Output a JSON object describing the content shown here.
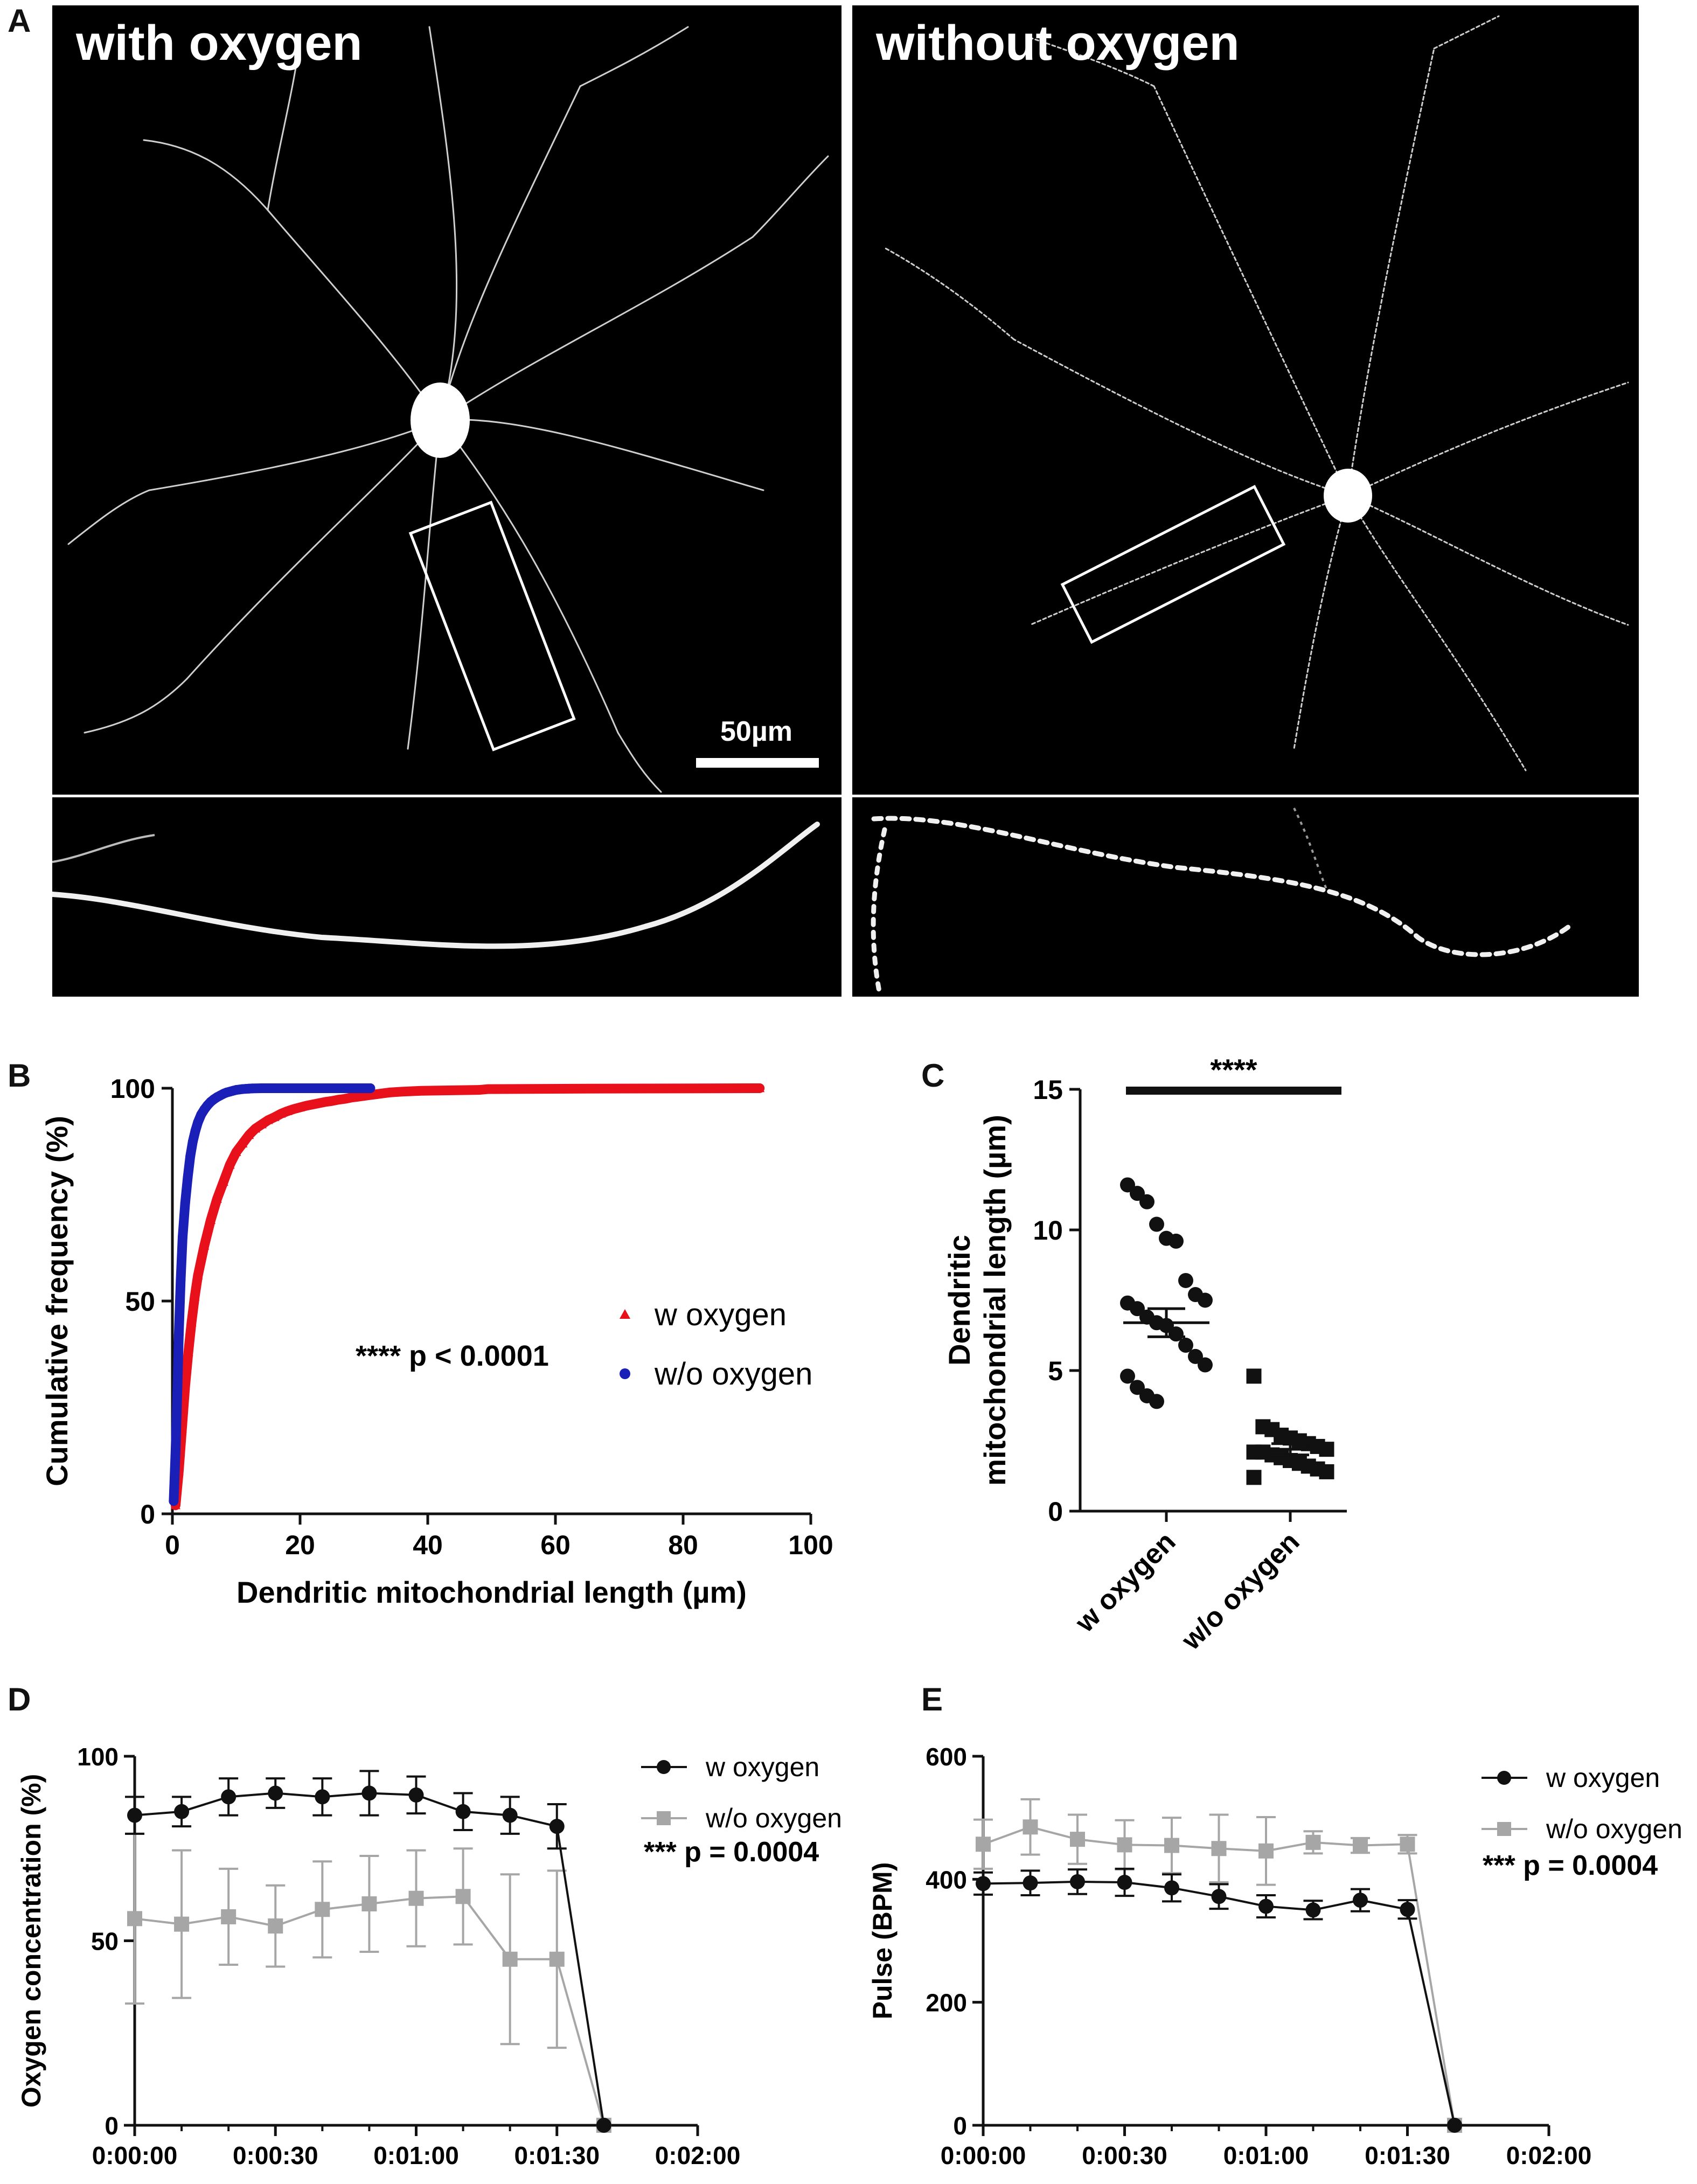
{
  "panels": {
    "A": {
      "letter": "A",
      "left_title": "with oxygen",
      "right_title": "without oxygen",
      "scale_bar_label": "50µm"
    },
    "B": {
      "letter": "B"
    },
    "C": {
      "letter": "C"
    },
    "D": {
      "letter": "D"
    },
    "E": {
      "letter": "E"
    }
  },
  "colors": {
    "red": "#e8101a",
    "blue": "#1a1fb8",
    "black": "#111111",
    "gray": "#a6a6a6"
  },
  "chart_data": [
    {
      "id": "B",
      "type": "scatter",
      "xlabel": "Dendritic mitochondrial length (µm)",
      "ylabel": "Cumulative frequency (%)",
      "xlim": [
        0,
        100
      ],
      "ylim": [
        0,
        100
      ],
      "xticks": [
        "0",
        "20",
        "40",
        "60",
        "80",
        "100"
      ],
      "yticks": [
        "0",
        "50",
        "100"
      ],
      "annotation": "**** p < 0.0001",
      "legend_position": "center-right",
      "series": [
        {
          "name": "w oxygen",
          "marker": "triangle",
          "color": "#e8101a",
          "x": [
            0.5,
            1,
            1.5,
            2,
            2.5,
            3,
            3.5,
            4,
            5,
            6,
            7,
            8,
            9,
            10,
            11,
            12,
            13,
            14,
            15,
            16,
            17,
            18,
            19,
            20,
            21,
            22,
            23,
            24,
            25,
            26,
            27,
            28,
            29,
            30,
            31,
            32,
            33,
            34,
            36,
            39,
            48,
            49.5,
            65,
            92
          ],
          "y": [
            2,
            10,
            20,
            30,
            38,
            45,
            51,
            56,
            63,
            69,
            74,
            78,
            82,
            85,
            87,
            89,
            90.5,
            91.5,
            92.5,
            93.2,
            94,
            94.6,
            95.1,
            95.5,
            95.9,
            96.2,
            96.5,
            96.8,
            97,
            97.3,
            97.5,
            97.8,
            98,
            98.2,
            98.4,
            98.6,
            98.8,
            99,
            99.2,
            99.4,
            99.6,
            99.8,
            99.9,
            100
          ]
        },
        {
          "name": "w/o oxygen",
          "marker": "circle",
          "color": "#1a1fb8",
          "x": [
            0.2,
            0.5,
            0.8,
            1,
            1.3,
            1.6,
            2,
            2.4,
            2.8,
            3.2,
            3.6,
            4,
            4.5,
            5,
            5.5,
            6,
            6.5,
            7,
            7.5,
            8,
            8.5,
            9,
            9.5,
            10,
            10.5,
            11,
            11.5,
            12,
            12.5,
            14,
            15,
            16,
            31
          ],
          "y": [
            3,
            15,
            30,
            42,
            55,
            65,
            73,
            79,
            84,
            87.5,
            90,
            92,
            93.8,
            95,
            96,
            96.8,
            97.4,
            97.9,
            98.3,
            98.7,
            99,
            99.2,
            99.4,
            99.6,
            99.7,
            99.8,
            99.85,
            99.9,
            99.95,
            100,
            100,
            100,
            100
          ]
        }
      ]
    },
    {
      "id": "C",
      "type": "scatter",
      "ylabel": "Dendritic mitochondrial length (µm)",
      "categories": [
        "w oxygen",
        "w/o oxygen"
      ],
      "ylim": [
        0,
        15
      ],
      "yticks": [
        "0",
        "5",
        "10",
        "15"
      ],
      "significance": "****",
      "series": [
        {
          "name": "w oxygen",
          "marker": "circle",
          "color": "#111111",
          "mean": 6.7,
          "sem": 0.5,
          "values": [
            11.6,
            11.3,
            11.0,
            10.2,
            9.7,
            9.6,
            8.2,
            7.7,
            7.5,
            7.4,
            7.2,
            6.9,
            6.7,
            6.6,
            6.3,
            5.9,
            5.5,
            5.2,
            4.8,
            4.4,
            4.1,
            3.9
          ]
        },
        {
          "name": "w/o oxygen",
          "marker": "square",
          "color": "#111111",
          "mean": 2.2,
          "sem": 0.2,
          "values": [
            4.8,
            3.0,
            2.9,
            2.7,
            2.6,
            2.5,
            2.4,
            2.3,
            2.2,
            2.1,
            2.1,
            2.0,
            1.9,
            1.8,
            1.7,
            1.6,
            1.5,
            1.4,
            1.2
          ]
        }
      ]
    },
    {
      "id": "D",
      "type": "line",
      "ylabel": "Oxygen concentration (%)",
      "x": [
        "0:00:00",
        "0:00:10",
        "0:00:20",
        "0:00:30",
        "0:00:40",
        "0:00:50",
        "0:01:00",
        "0:01:10",
        "0:01:20",
        "0:01:30",
        "0:01:40"
      ],
      "xticks": [
        "0:00:00",
        "0:00:30",
        "0:01:00",
        "0:01:30",
        "0:02:00"
      ],
      "xlim": [
        "0:00:00",
        "0:02:00"
      ],
      "ylim": [
        0,
        100
      ],
      "yticks": [
        "0",
        "50",
        "100"
      ],
      "annotation": "*** p = 0.0004",
      "legend_position": "top-right",
      "series": [
        {
          "name": "w oxygen",
          "marker": "circle",
          "color": "#111111",
          "values": [
            84,
            85,
            89,
            90,
            89,
            90,
            89.5,
            85,
            84,
            81,
            0
          ],
          "err": [
            5,
            4,
            5,
            4,
            5,
            6,
            5,
            5,
            5,
            6,
            0
          ]
        },
        {
          "name": "w/o oxygen",
          "marker": "square",
          "color": "#a6a6a6",
          "values": [
            56,
            54.5,
            56.5,
            54,
            58.5,
            60,
            61.5,
            62,
            45,
            45,
            0
          ],
          "err": [
            23,
            20,
            13,
            11,
            13,
            13,
            13,
            13,
            23,
            24,
            0
          ]
        }
      ]
    },
    {
      "id": "E",
      "type": "line",
      "ylabel": "Pulse (BPM)",
      "x": [
        "0:00:00",
        "0:00:10",
        "0:00:20",
        "0:00:30",
        "0:00:40",
        "0:00:50",
        "0:01:00",
        "0:01:10",
        "0:01:20",
        "0:01:30",
        "0:01:40"
      ],
      "xticks": [
        "0:00:00",
        "0:00:30",
        "0:01:00",
        "0:01:30",
        "0:02:00"
      ],
      "xlim": [
        "0:00:00",
        "0:02:00"
      ],
      "ylim": [
        0,
        600
      ],
      "yticks": [
        "0",
        "200",
        "400",
        "600"
      ],
      "annotation": "*** p = 0.0004",
      "legend_position": "top-right",
      "series": [
        {
          "name": "w oxygen",
          "marker": "circle",
          "color": "#111111",
          "values": [
            393,
            394,
            396,
            395,
            386,
            372,
            356,
            350,
            366,
            351,
            0
          ],
          "err": [
            18,
            20,
            20,
            22,
            22,
            20,
            18,
            15,
            18,
            15,
            0
          ]
        },
        {
          "name": "w/o oxygen",
          "marker": "square",
          "color": "#a6a6a6",
          "values": [
            457,
            485,
            465,
            456,
            455,
            450,
            446,
            460,
            455,
            457,
            0
          ],
          "err": [
            40,
            45,
            40,
            40,
            45,
            55,
            55,
            18,
            12,
            15,
            0
          ]
        }
      ]
    }
  ]
}
